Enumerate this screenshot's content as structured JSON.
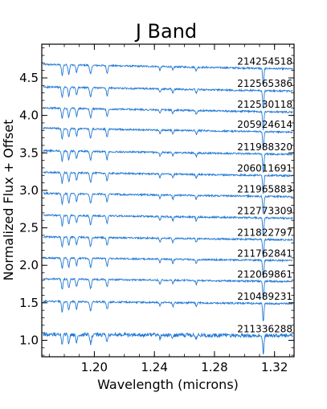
{
  "chart_data": {
    "type": "line",
    "title": "J Band",
    "xlabel": "Wavelength (microns)",
    "ylabel": "Normalized Flux + Offset",
    "xlim": [
      1.165,
      1.333
    ],
    "ylim": [
      0.78,
      4.95
    ],
    "x_ticks": [
      1.2,
      1.24,
      1.28,
      1.32
    ],
    "x_tick_labels": [
      "1.20",
      "1.24",
      "1.28",
      "1.32"
    ],
    "y_ticks": [
      1.0,
      1.5,
      2.0,
      2.5,
      3.0,
      3.5,
      4.0,
      4.5
    ],
    "y_tick_labels": [
      "1.0",
      "1.5",
      "2.0",
      "2.5",
      "3.0",
      "3.5",
      "4.0",
      "4.5"
    ],
    "grid": false,
    "line_color": "#1f77d4",
    "absorption_lines_microns": [
      1.1786,
      1.183,
      1.1882,
      1.1975,
      1.2085,
      1.2437,
      1.2523,
      1.2679,
      1.3123,
      1.3127
    ],
    "series": [
      {
        "name": "214254518",
        "offset": 4.68,
        "slope": -0.36
      },
      {
        "name": "212565386",
        "offset": 4.38,
        "slope": -0.34
      },
      {
        "name": "212530118",
        "offset": 4.1,
        "slope": -0.34
      },
      {
        "name": "205924614",
        "offset": 3.83,
        "slope": -0.32
      },
      {
        "name": "211988320",
        "offset": 3.53,
        "slope": -0.3
      },
      {
        "name": "206011691",
        "offset": 3.24,
        "slope": -0.27
      },
      {
        "name": "211965883",
        "offset": 2.96,
        "slope": -0.27
      },
      {
        "name": "212773309",
        "offset": 2.67,
        "slope": -0.25
      },
      {
        "name": "211822797",
        "offset": 2.38,
        "slope": -0.24
      },
      {
        "name": "211762841",
        "offset": 2.1,
        "slope": -0.22
      },
      {
        "name": "212069861",
        "offset": 1.82,
        "slope": -0.22
      },
      {
        "name": "210489231",
        "offset": 1.52,
        "slope": -0.2
      },
      {
        "name": "211336288",
        "offset": 1.08,
        "slope": -0.12
      }
    ]
  }
}
